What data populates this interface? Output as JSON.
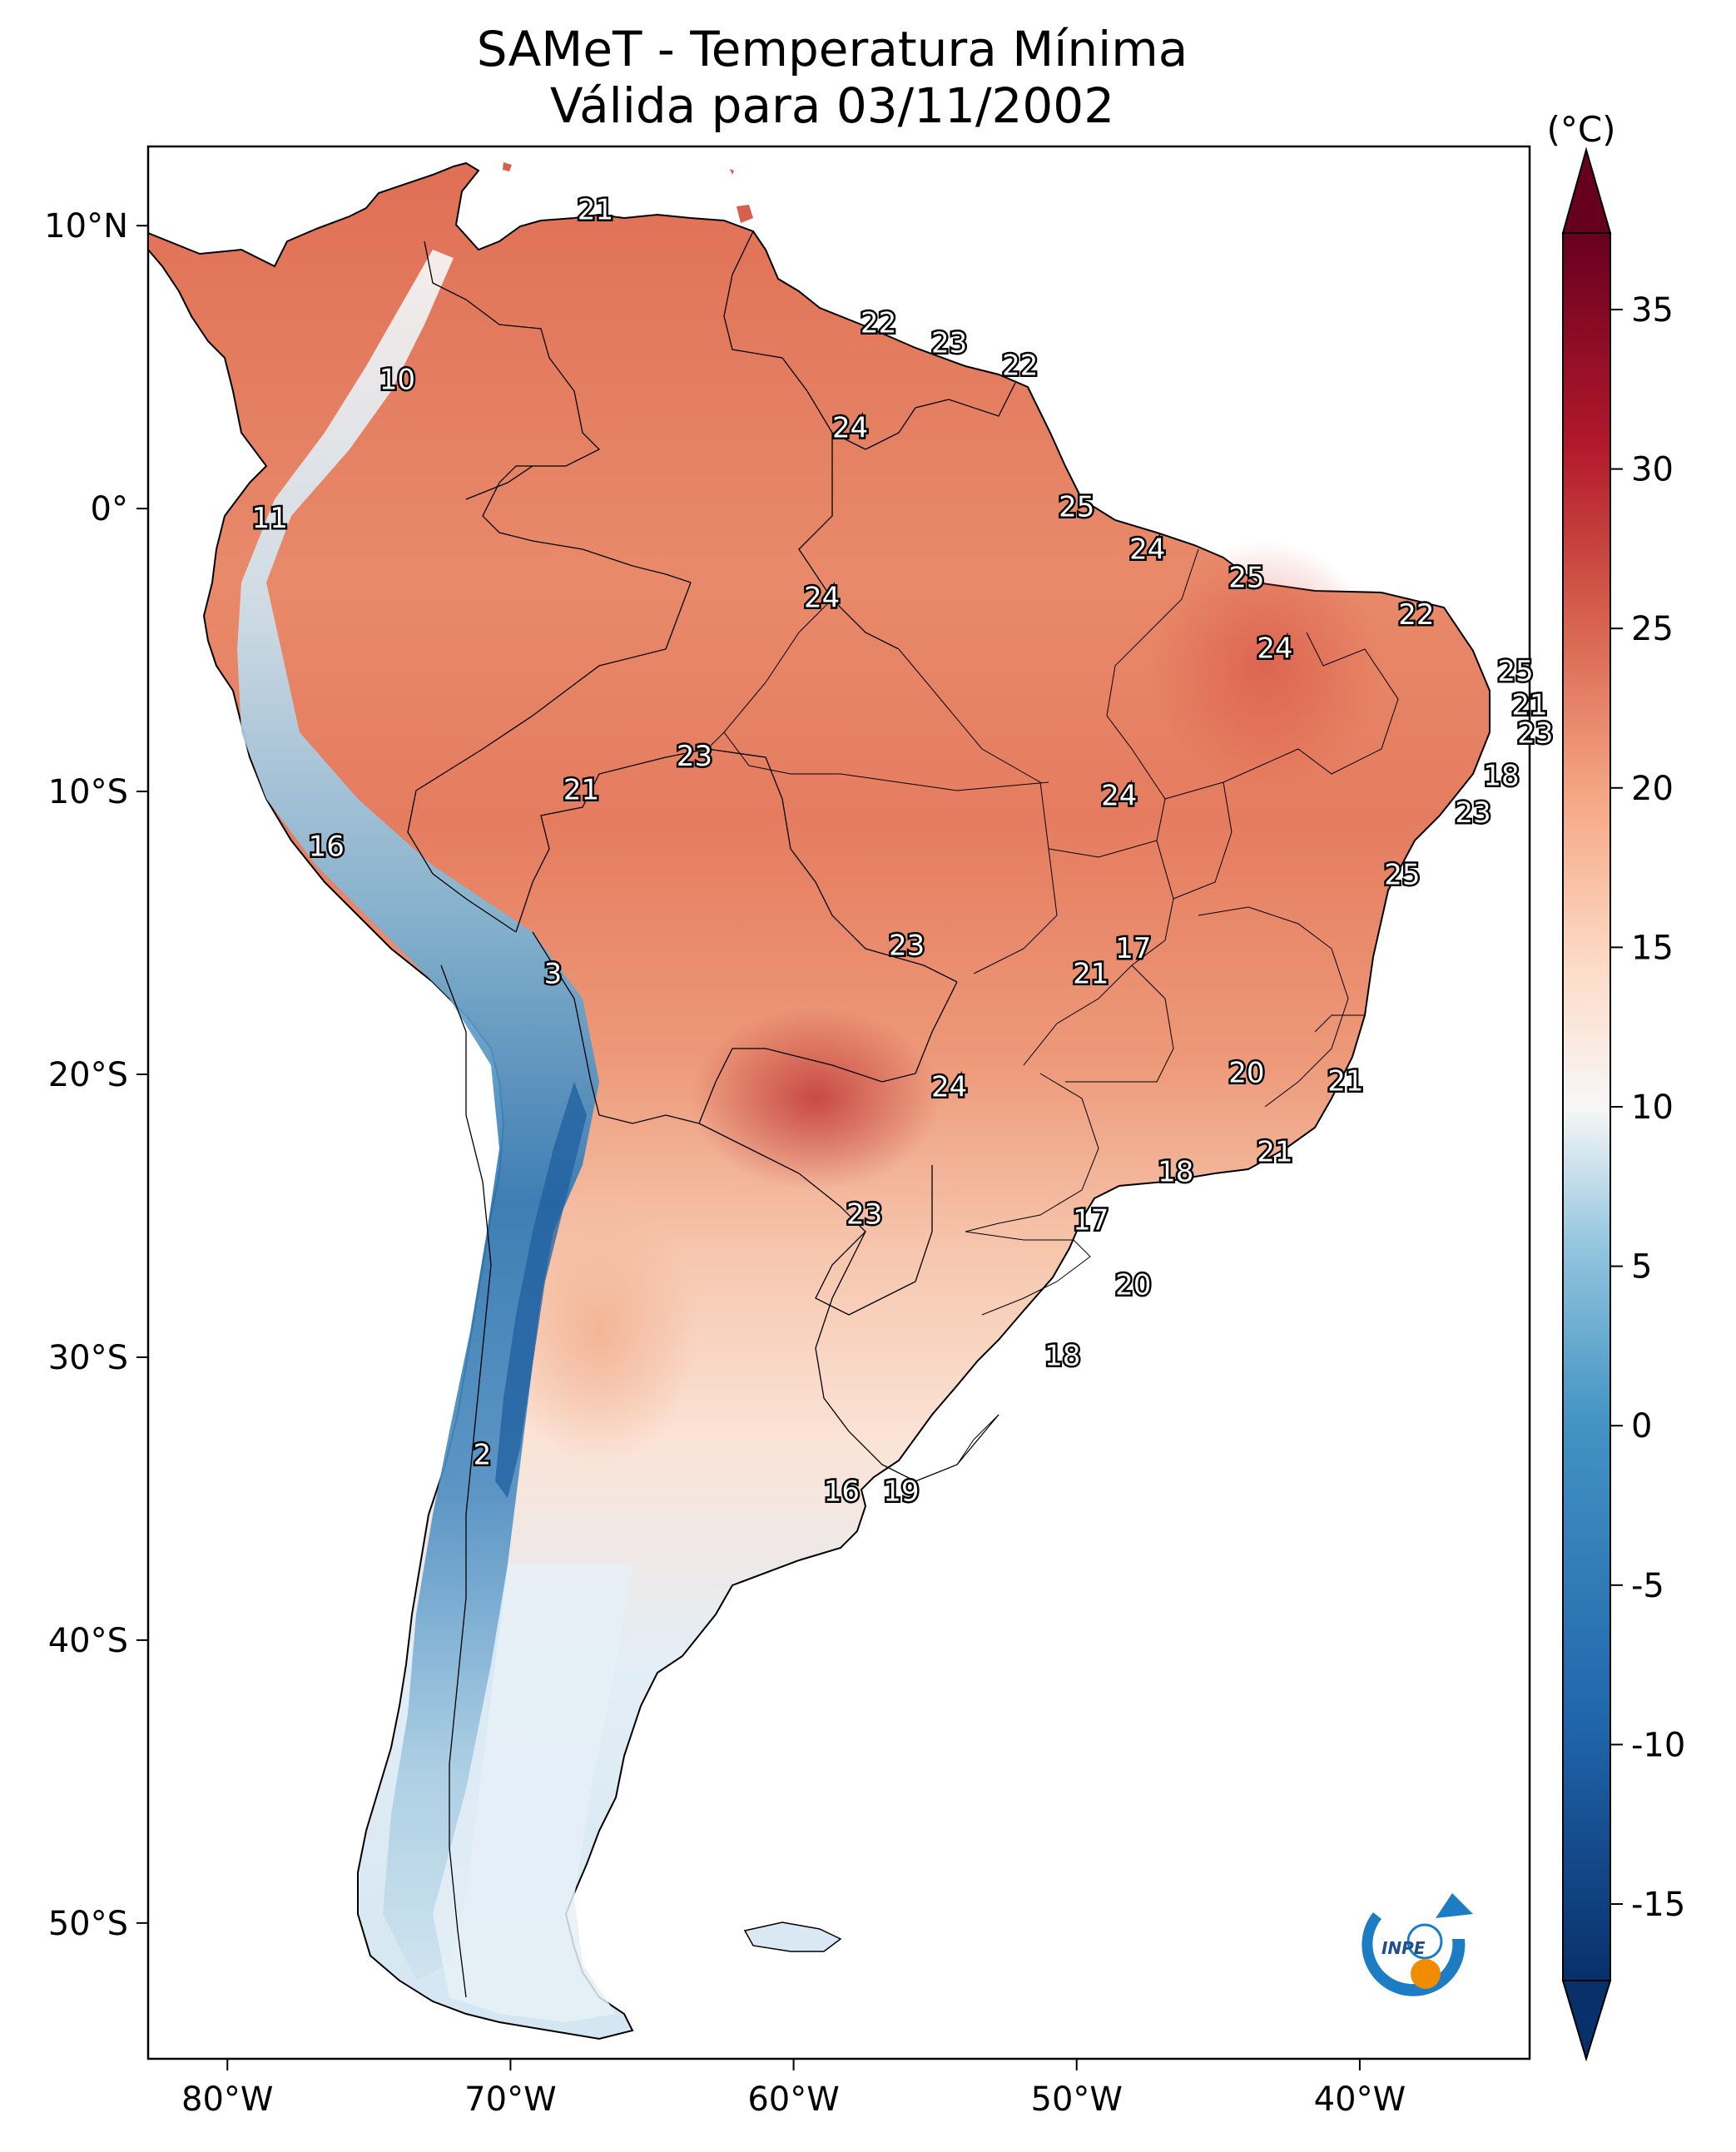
{
  "title": {
    "line1": "SAMeT - Temperatura Mínima",
    "line2": "Válida para 03/11/2002"
  },
  "axes": {
    "lon_ticks": [
      "80°W",
      "70°W",
      "60°W",
      "50°W",
      "40°W"
    ],
    "lat_ticks": [
      "10°N",
      "0°",
      "10°S",
      "20°S",
      "30°S",
      "40°S",
      "50°S"
    ]
  },
  "colorbar": {
    "unit_label": "(°C)",
    "ticks": [
      "35",
      "30",
      "25",
      "20",
      "15",
      "10",
      "5",
      "0",
      "-5",
      "-10",
      "-15"
    ],
    "min": -15,
    "max": 35,
    "colors": {
      "cold_extreme": "#08306b",
      "cold": "#2166ac",
      "cool": "#92c5de",
      "neutral": "#f7f7f7",
      "mild": "#fddbc7",
      "warm": "#ef8a62",
      "hot": "#d6604d",
      "very_hot": "#b2182b",
      "extreme": "#67001f"
    }
  },
  "station_labels": [
    {
      "text": "21",
      "lon": -67.0,
      "lat": 10.5
    },
    {
      "text": "22",
      "lon": -57.0,
      "lat": 6.5
    },
    {
      "text": "23",
      "lon": -54.5,
      "lat": 5.8
    },
    {
      "text": "22",
      "lon": -52.0,
      "lat": 5.0
    },
    {
      "text": "10",
      "lon": -74.0,
      "lat": 4.5
    },
    {
      "text": "24",
      "lon": -58.0,
      "lat": 2.8
    },
    {
      "text": "25",
      "lon": -50.0,
      "lat": 0.0
    },
    {
      "text": "11",
      "lon": -78.5,
      "lat": -0.4
    },
    {
      "text": "24",
      "lon": -47.5,
      "lat": -1.5
    },
    {
      "text": "25",
      "lon": -44.0,
      "lat": -2.5
    },
    {
      "text": "24",
      "lon": -59.0,
      "lat": -3.2
    },
    {
      "text": "22",
      "lon": -38.0,
      "lat": -3.8
    },
    {
      "text": "24",
      "lon": -43.0,
      "lat": -5.0
    },
    {
      "text": "25",
      "lon": -34.5,
      "lat": -5.8
    },
    {
      "text": "21",
      "lon": -34.0,
      "lat": -7.0
    },
    {
      "text": "23",
      "lon": -33.8,
      "lat": -8.0
    },
    {
      "text": "23",
      "lon": -63.5,
      "lat": -8.8
    },
    {
      "text": "18",
      "lon": -35.0,
      "lat": -9.5
    },
    {
      "text": "21",
      "lon": -67.5,
      "lat": -10.0
    },
    {
      "text": "24",
      "lon": -48.5,
      "lat": -10.2
    },
    {
      "text": "23",
      "lon": -36.0,
      "lat": -10.8
    },
    {
      "text": "16",
      "lon": -76.5,
      "lat": -12.0
    },
    {
      "text": "25",
      "lon": -38.5,
      "lat": -13.0
    },
    {
      "text": "23",
      "lon": -56.0,
      "lat": -15.5
    },
    {
      "text": "17",
      "lon": -48.0,
      "lat": -15.6
    },
    {
      "text": "21",
      "lon": -49.5,
      "lat": -16.5
    },
    {
      "text": "3",
      "lon": -68.5,
      "lat": -16.5
    },
    {
      "text": "20",
      "lon": -44.0,
      "lat": -20.0
    },
    {
      "text": "21",
      "lon": -40.5,
      "lat": -20.3
    },
    {
      "text": "24",
      "lon": -54.5,
      "lat": -20.5
    },
    {
      "text": "21",
      "lon": -43.0,
      "lat": -22.8
    },
    {
      "text": "18",
      "lon": -46.5,
      "lat": -23.5
    },
    {
      "text": "23",
      "lon": -57.5,
      "lat": -25.0
    },
    {
      "text": "17",
      "lon": -49.5,
      "lat": -25.2
    },
    {
      "text": "20",
      "lon": -48.0,
      "lat": -27.5
    },
    {
      "text": "18",
      "lon": -50.5,
      "lat": -30.0
    },
    {
      "text": "2",
      "lon": -71.0,
      "lat": -33.5
    },
    {
      "text": "16",
      "lon": -58.3,
      "lat": -34.8
    },
    {
      "text": "19",
      "lon": -56.2,
      "lat": -34.8
    }
  ],
  "logo": {
    "text": "INPE"
  }
}
